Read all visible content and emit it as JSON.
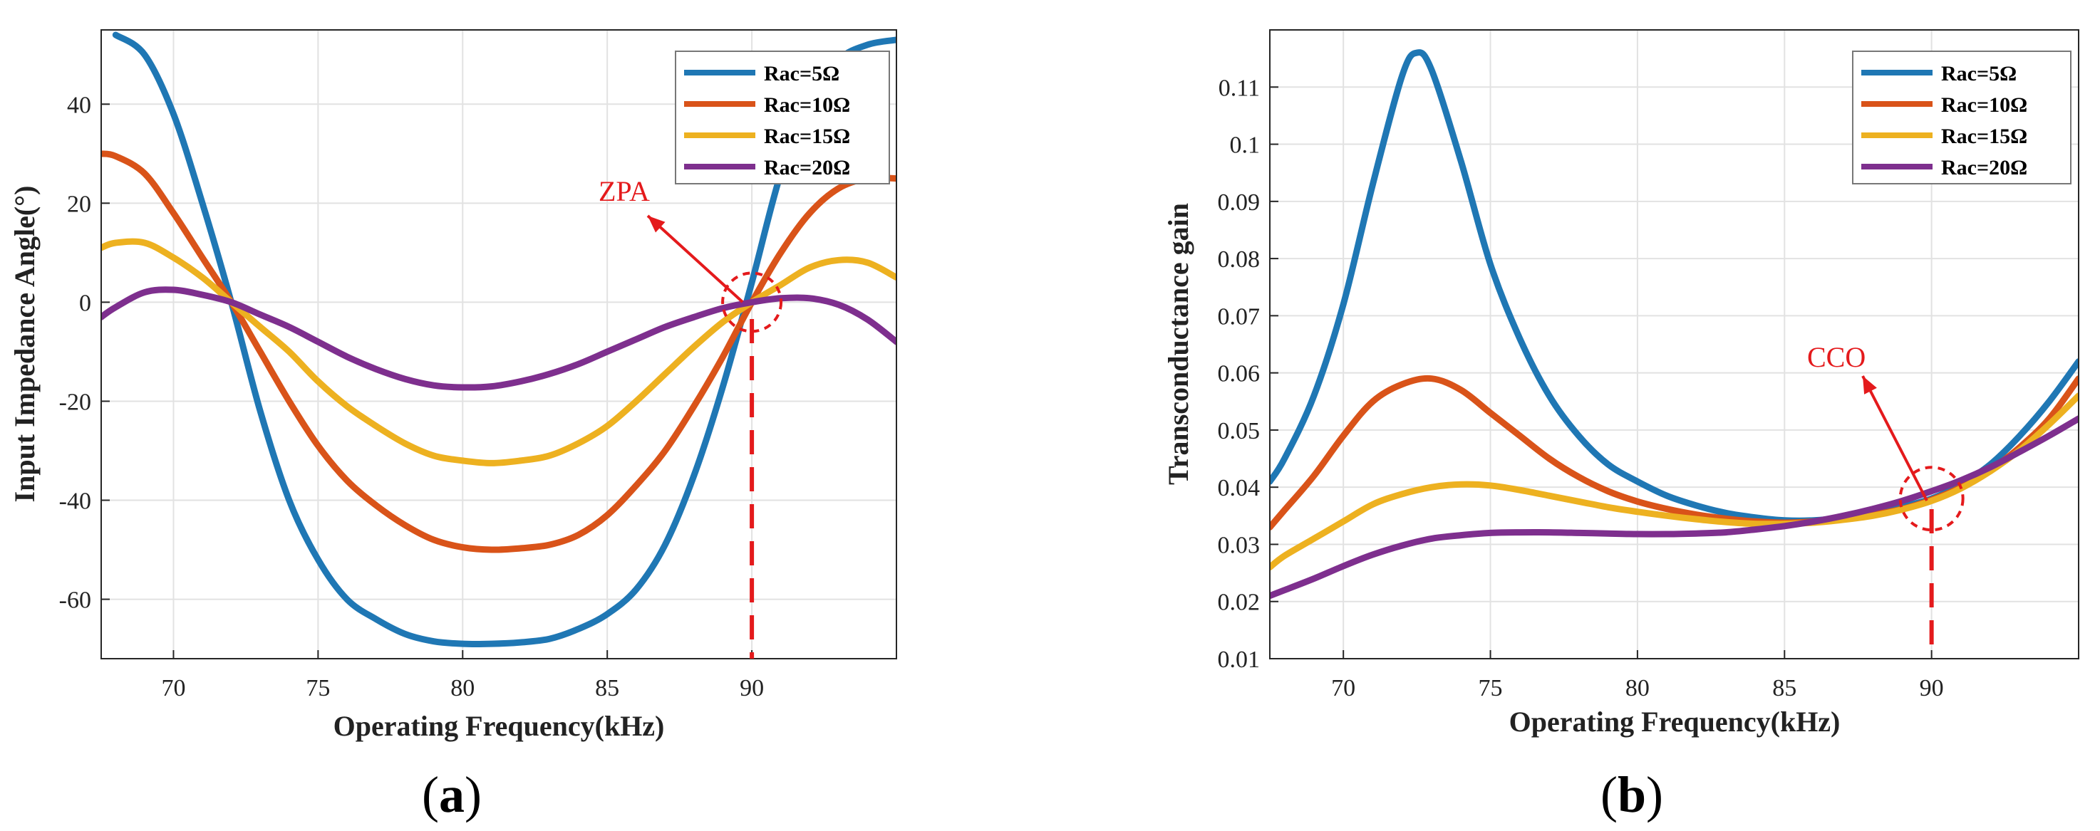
{
  "figure": {
    "panels": [
      {
        "label_open": "(",
        "label_letter": "a",
        "label_close": ")"
      },
      {
        "label_open": "(",
        "label_letter": "b",
        "label_close": ")"
      }
    ]
  },
  "colors": {
    "series": [
      "#1f77b4",
      "#d95319",
      "#edb120",
      "#7e2f8e"
    ],
    "annotation": "#e41a1c",
    "grid": "#e2e2e2",
    "axis": "#262626"
  },
  "chart_data": [
    {
      "type": "line",
      "title": "",
      "xlabel": "Operating Frequency(kHz)",
      "ylabel": "Input Impedance Angle(°)",
      "xlim": [
        67.5,
        95
      ],
      "ylim": [
        -72,
        55
      ],
      "xticks": [
        70,
        75,
        80,
        85,
        90
      ],
      "yticks": [
        40,
        20,
        0,
        -20,
        -40,
        -60
      ],
      "grid": true,
      "legend_position": "top-right",
      "series": [
        {
          "name": "Rac=5Ω",
          "x": [
            68,
            69,
            70,
            71,
            72,
            73,
            74,
            75,
            76,
            77,
            78,
            79,
            80,
            81,
            82,
            83,
            84,
            85,
            86,
            87,
            88,
            89,
            90,
            91,
            92,
            93,
            94,
            95
          ],
          "y": [
            54,
            50,
            38,
            20,
            0,
            -22,
            -40,
            -52,
            -60,
            -64,
            -67,
            -68.5,
            -69,
            -69,
            -68.7,
            -68,
            -66,
            -63,
            -58,
            -49,
            -35,
            -17,
            4,
            26,
            41,
            49,
            52,
            53
          ]
        },
        {
          "name": "Rac=10Ω",
          "x": [
            67.5,
            68,
            69,
            70,
            71,
            72,
            73,
            74,
            75,
            76,
            77,
            78,
            79,
            80,
            81,
            82,
            83,
            84,
            85,
            86,
            87,
            88,
            89,
            90,
            91,
            92,
            93,
            94,
            95
          ],
          "y": [
            30,
            29.5,
            26,
            18,
            9,
            0,
            -10,
            -20,
            -29,
            -36,
            -41,
            -45,
            -48,
            -49.5,
            -50,
            -49.7,
            -49,
            -47,
            -43,
            -37,
            -30,
            -21,
            -11,
            0,
            10,
            18,
            23,
            25,
            25
          ]
        },
        {
          "name": "Rac=15Ω",
          "x": [
            67.5,
            68,
            69,
            70,
            71,
            72,
            73,
            74,
            75,
            76,
            77,
            78,
            79,
            80,
            81,
            82,
            83,
            84,
            85,
            86,
            87,
            88,
            89,
            90,
            91,
            92,
            93,
            94,
            95
          ],
          "y": [
            11,
            12,
            12,
            9,
            5,
            0,
            -5,
            -10,
            -16,
            -21,
            -25,
            -28.5,
            -31,
            -32,
            -32.5,
            -32,
            -31,
            -28.5,
            -25,
            -20,
            -14.5,
            -9,
            -4,
            0,
            3.5,
            7,
            8.5,
            8,
            5
          ]
        },
        {
          "name": "Rac=20Ω",
          "x": [
            67.5,
            68,
            69,
            70,
            71,
            72,
            73,
            74,
            75,
            76,
            77,
            78,
            79,
            80,
            81,
            82,
            83,
            84,
            85,
            86,
            87,
            88,
            89,
            90,
            91,
            92,
            93,
            94,
            95
          ],
          "y": [
            -3,
            -1,
            2,
            2.5,
            1.5,
            0,
            -2.5,
            -5,
            -8,
            -11,
            -13.5,
            -15.5,
            -16.8,
            -17.2,
            -17,
            -16,
            -14.5,
            -12.5,
            -10,
            -7.5,
            -5,
            -3,
            -1.2,
            0,
            0.8,
            0.8,
            -0.5,
            -3.5,
            -8
          ]
        }
      ],
      "annotations": [
        {
          "text": "ZPA",
          "x": 90,
          "y": 0
        }
      ]
    },
    {
      "type": "line",
      "title": "",
      "xlabel": "Operating Frequency(kHz)",
      "ylabel": "Transconductance gain",
      "xlim": [
        67.5,
        95
      ],
      "ylim": [
        0.01,
        0.12
      ],
      "xticks": [
        70,
        75,
        80,
        85,
        90
      ],
      "yticks": [
        "0.11",
        "0.1",
        "0.09",
        "0.08",
        "0.07",
        "0.06",
        "0.05",
        "0.04",
        "0.03",
        "0.02",
        "0.01"
      ],
      "grid": true,
      "legend_position": "top-right",
      "series": [
        {
          "name": "Rac=5Ω",
          "x": [
            67.5,
            68,
            69,
            70,
            71,
            72,
            72.5,
            73,
            74,
            75,
            76,
            77,
            78,
            79,
            80,
            81,
            82,
            83,
            84,
            85,
            86,
            87,
            88,
            89,
            90,
            91,
            92,
            93,
            94,
            95
          ],
          "y": [
            0.041,
            0.045,
            0.056,
            0.072,
            0.093,
            0.112,
            0.116,
            0.113,
            0.097,
            0.079,
            0.066,
            0.056,
            0.049,
            0.044,
            0.041,
            0.0385,
            0.0368,
            0.0355,
            0.0347,
            0.0342,
            0.0342,
            0.0347,
            0.0355,
            0.0366,
            0.038,
            0.0405,
            0.044,
            0.049,
            0.055,
            0.062
          ]
        },
        {
          "name": "Rac=10Ω",
          "x": [
            67.5,
            68,
            69,
            70,
            71,
            72,
            73,
            74,
            75,
            76,
            77,
            78,
            79,
            80,
            81,
            82,
            83,
            84,
            85,
            86,
            87,
            88,
            89,
            90,
            91,
            92,
            93,
            94,
            95
          ],
          "y": [
            0.033,
            0.036,
            0.042,
            0.049,
            0.055,
            0.058,
            0.059,
            0.057,
            0.053,
            0.049,
            0.045,
            0.0418,
            0.0393,
            0.0375,
            0.0362,
            0.0352,
            0.0345,
            0.034,
            0.0338,
            0.034,
            0.0345,
            0.0352,
            0.0362,
            0.0378,
            0.04,
            0.043,
            0.047,
            0.052,
            0.059
          ]
        },
        {
          "name": "Rac=15Ω",
          "x": [
            67.5,
            68,
            69,
            70,
            71,
            72,
            73,
            74,
            75,
            76,
            77,
            78,
            79,
            80,
            81,
            82,
            83,
            84,
            85,
            86,
            87,
            88,
            89,
            90,
            91,
            92,
            93,
            94,
            95
          ],
          "y": [
            0.026,
            0.028,
            0.031,
            0.034,
            0.037,
            0.0388,
            0.04,
            0.0405,
            0.0403,
            0.0395,
            0.0385,
            0.0375,
            0.0365,
            0.0357,
            0.035,
            0.0344,
            0.0339,
            0.0336,
            0.0336,
            0.0338,
            0.0343,
            0.035,
            0.0361,
            0.0376,
            0.0398,
            0.0428,
            0.0465,
            0.051,
            0.056
          ]
        },
        {
          "name": "Rac=20Ω",
          "x": [
            67.5,
            68,
            69,
            70,
            71,
            72,
            73,
            74,
            75,
            76,
            77,
            78,
            79,
            80,
            81,
            82,
            83,
            84,
            85,
            86,
            87,
            88,
            89,
            90,
            91,
            92,
            93,
            94,
            95
          ],
          "y": [
            0.021,
            0.022,
            0.024,
            0.0262,
            0.0282,
            0.0298,
            0.031,
            0.0316,
            0.032,
            0.0321,
            0.0321,
            0.032,
            0.0319,
            0.0318,
            0.0318,
            0.0319,
            0.0321,
            0.0326,
            0.0332,
            0.034,
            0.035,
            0.0362,
            0.0376,
            0.0393,
            0.0412,
            0.0435,
            0.0462,
            0.049,
            0.052
          ]
        }
      ],
      "annotations": [
        {
          "text": "CCO",
          "x": 90,
          "y": 0.038
        }
      ]
    }
  ]
}
